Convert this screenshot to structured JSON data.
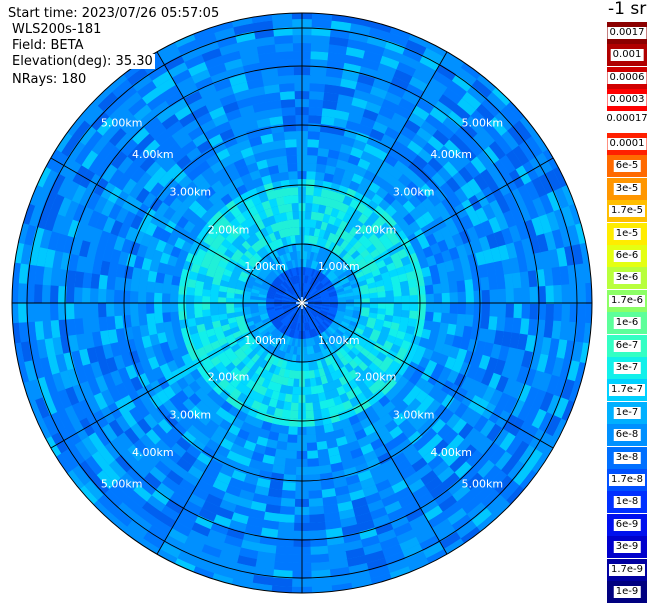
{
  "info": {
    "start_time": "Start time: 2023/07/26 05:57:05",
    "instrument": "WLS200s-181",
    "field": "Field: BETA",
    "elevation": "Elevation(deg): 35.30",
    "nrays": "NRays: 180"
  },
  "colorbar": {
    "unit_title": "-1 sr",
    "gap_label": "0.00017",
    "levels": [
      {
        "label": "0.0017",
        "color": "#8b0000"
      },
      {
        "label": "0.001",
        "color": "#b00000"
      },
      {
        "label": "0.0006",
        "color": "#d00000"
      },
      {
        "label": "0.0003",
        "color": "#ff0000"
      },
      {
        "label": "0.0001",
        "color": "#ff2000"
      },
      {
        "label": "6e-5",
        "color": "#ff6a00"
      },
      {
        "label": "3e-5",
        "color": "#ff9600"
      },
      {
        "label": "1.7e-5",
        "color": "#ffbe00"
      },
      {
        "label": "1e-5",
        "color": "#ffec00"
      },
      {
        "label": "6e-6",
        "color": "#e4ff12"
      },
      {
        "label": "3e-6",
        "color": "#b8ff3c"
      },
      {
        "label": "1.7e-6",
        "color": "#8cff66"
      },
      {
        "label": "1e-6",
        "color": "#5cff9a"
      },
      {
        "label": "6e-7",
        "color": "#34ffc4"
      },
      {
        "label": "3e-7",
        "color": "#12f0ea"
      },
      {
        "label": "1.7e-7",
        "color": "#00d0ff"
      },
      {
        "label": "1e-7",
        "color": "#00b0ff"
      },
      {
        "label": "6e-8",
        "color": "#0090ff"
      },
      {
        "label": "3e-8",
        "color": "#0070ff"
      },
      {
        "label": "1.7e-8",
        "color": "#0050ff"
      },
      {
        "label": "1e-8",
        "color": "#0030ff"
      },
      {
        "label": "6e-9",
        "color": "#0010ee"
      },
      {
        "label": "3e-9",
        "color": "#0000cc"
      },
      {
        "label": "1.7e-9",
        "color": "#0000a0"
      },
      {
        "label": "1e-9",
        "color": "#000080"
      }
    ]
  },
  "plot": {
    "ring_labels": [
      "1.00km",
      "2.00km",
      "3.00km",
      "4.00km",
      "5.00km"
    ],
    "spoke_count": 12
  }
}
